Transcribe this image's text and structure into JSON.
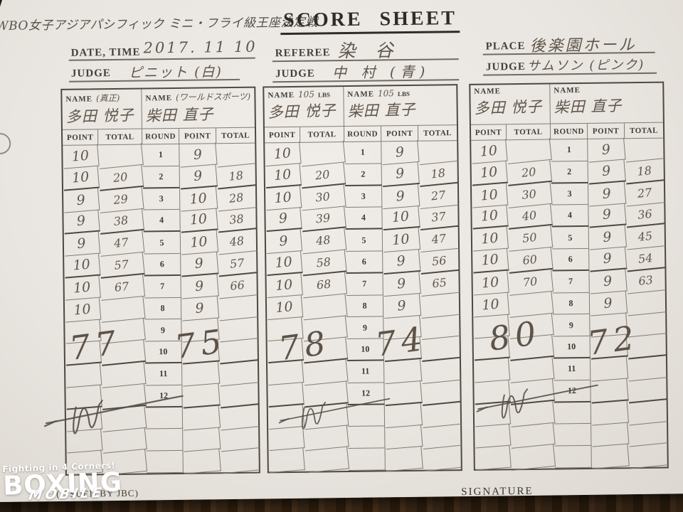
{
  "header": {
    "handwritten_title": "WBO女子アジアパシフィック ミニ・フライ級王座決定戦",
    "title": "SCORE SHEET",
    "date_time": {
      "label": "DATE, TIME",
      "value": "2017. 11 10"
    },
    "referee": {
      "label": "REFEREE",
      "value": "染 谷"
    },
    "place": {
      "label": "PLACE",
      "value": "後楽園ホール"
    },
    "judges": [
      {
        "label": "JUDGE",
        "value": "ピニット (白)"
      },
      {
        "label": "JUDGE",
        "value": "中 村 (青)"
      },
      {
        "label": "JUDGE",
        "value": "サムソン (ピンク)"
      }
    ]
  },
  "tables": [
    {
      "name_a": {
        "label": "NAME",
        "note": "(真正)",
        "unit": "",
        "value": "多田 悦子"
      },
      "name_b": {
        "label": "NAME",
        "note": "(ワールドスポーツ)",
        "unit": "",
        "value": "柴田 直子"
      },
      "columns": [
        "POINT",
        "TOTAL",
        "ROUND",
        "POINT",
        "TOTAL"
      ],
      "rounds": [
        {
          "no": "1",
          "ap": "10",
          "at": "",
          "bp": "9",
          "bt": ""
        },
        {
          "no": "2",
          "ap": "10",
          "at": "20",
          "bp": "9",
          "bt": "18"
        },
        {
          "no": "3",
          "ap": "9",
          "at": "29",
          "bp": "10",
          "bt": "28"
        },
        {
          "no": "4",
          "ap": "9",
          "at": "38",
          "bp": "10",
          "bt": "38"
        },
        {
          "no": "5",
          "ap": "9",
          "at": "47",
          "bp": "10",
          "bt": "48"
        },
        {
          "no": "6",
          "ap": "10",
          "at": "57",
          "bp": "9",
          "bt": "57"
        },
        {
          "no": "7",
          "ap": "10",
          "at": "67",
          "bp": "9",
          "bt": "66"
        },
        {
          "no": "8",
          "ap": "10",
          "at": "",
          "bp": "9",
          "bt": ""
        },
        {
          "no": "9",
          "ap": "",
          "at": "",
          "bp": "",
          "bt": ""
        },
        {
          "no": "10",
          "ap": "",
          "at": "",
          "bp": "",
          "bt": ""
        },
        {
          "no": "11",
          "ap": "",
          "at": "",
          "bp": "",
          "bt": ""
        },
        {
          "no": "12",
          "ap": "",
          "at": "",
          "bp": "",
          "bt": ""
        },
        {
          "no": "",
          "ap": "",
          "at": "",
          "bp": "",
          "bt": ""
        },
        {
          "no": "",
          "ap": "",
          "at": "",
          "bp": "",
          "bt": ""
        },
        {
          "no": "",
          "ap": "",
          "at": "",
          "bp": "",
          "bt": ""
        }
      ],
      "final_a": "77",
      "final_b": "75"
    },
    {
      "name_a": {
        "label": "NAME",
        "note": "105",
        "unit": "LBS",
        "value": "多田 悦子"
      },
      "name_b": {
        "label": "NAME",
        "note": "105",
        "unit": "LBS",
        "value": "柴田 直子"
      },
      "columns": [
        "POINT",
        "TOTAL",
        "ROUND",
        "POINT",
        "TOTAL"
      ],
      "rounds": [
        {
          "no": "1",
          "ap": "10",
          "at": "",
          "bp": "9",
          "bt": ""
        },
        {
          "no": "2",
          "ap": "10",
          "at": "20",
          "bp": "9",
          "bt": "18"
        },
        {
          "no": "3",
          "ap": "10",
          "at": "30",
          "bp": "9",
          "bt": "27"
        },
        {
          "no": "4",
          "ap": "9",
          "at": "39",
          "bp": "10",
          "bt": "37"
        },
        {
          "no": "5",
          "ap": "9",
          "at": "48",
          "bp": "10",
          "bt": "47"
        },
        {
          "no": "6",
          "ap": "10",
          "at": "58",
          "bp": "9",
          "bt": "56"
        },
        {
          "no": "7",
          "ap": "10",
          "at": "68",
          "bp": "9",
          "bt": "65"
        },
        {
          "no": "8",
          "ap": "10",
          "at": "",
          "bp": "9",
          "bt": ""
        },
        {
          "no": "9",
          "ap": "",
          "at": "",
          "bp": "",
          "bt": ""
        },
        {
          "no": "10",
          "ap": "",
          "at": "",
          "bp": "",
          "bt": ""
        },
        {
          "no": "11",
          "ap": "",
          "at": "",
          "bp": "",
          "bt": ""
        },
        {
          "no": "12",
          "ap": "",
          "at": "",
          "bp": "",
          "bt": ""
        },
        {
          "no": "",
          "ap": "",
          "at": "",
          "bp": "",
          "bt": ""
        },
        {
          "no": "",
          "ap": "",
          "at": "",
          "bp": "",
          "bt": ""
        },
        {
          "no": "",
          "ap": "",
          "at": "",
          "bp": "",
          "bt": ""
        }
      ],
      "final_a": "78",
      "final_b": "74"
    },
    {
      "name_a": {
        "label": "NAME",
        "note": "",
        "unit": "",
        "value": "多田 悦子"
      },
      "name_b": {
        "label": "NAME",
        "note": "",
        "unit": "",
        "value": "柴田 直子"
      },
      "columns": [
        "POINT",
        "TOTAL",
        "ROUND",
        "POINT",
        "TOTAL"
      ],
      "rounds": [
        {
          "no": "1",
          "ap": "10",
          "at": "",
          "bp": "9",
          "bt": ""
        },
        {
          "no": "2",
          "ap": "10",
          "at": "20",
          "bp": "9",
          "bt": "18"
        },
        {
          "no": "3",
          "ap": "10",
          "at": "30",
          "bp": "9",
          "bt": "27"
        },
        {
          "no": "4",
          "ap": "10",
          "at": "40",
          "bp": "9",
          "bt": "36"
        },
        {
          "no": "5",
          "ap": "10",
          "at": "50",
          "bp": "9",
          "bt": "45"
        },
        {
          "no": "6",
          "ap": "10",
          "at": "60",
          "bp": "9",
          "bt": "54"
        },
        {
          "no": "7",
          "ap": "10",
          "at": "70",
          "bp": "9",
          "bt": "63"
        },
        {
          "no": "8",
          "ap": "10",
          "at": "",
          "bp": "9",
          "bt": ""
        },
        {
          "no": "9",
          "ap": "",
          "at": "",
          "bp": "",
          "bt": ""
        },
        {
          "no": "10",
          "ap": "",
          "at": "",
          "bp": "",
          "bt": ""
        },
        {
          "no": "11",
          "ap": "",
          "at": "",
          "bp": "",
          "bt": ""
        },
        {
          "no": "12",
          "ap": "",
          "at": "",
          "bp": "",
          "bt": ""
        },
        {
          "no": "",
          "ap": "",
          "at": "",
          "bp": "",
          "bt": ""
        },
        {
          "no": "",
          "ap": "",
          "at": "",
          "bp": "",
          "bt": ""
        },
        {
          "no": "",
          "ap": "",
          "at": "",
          "bp": "",
          "bt": ""
        }
      ],
      "final_a": "80",
      "final_b": "72"
    }
  ],
  "footer": {
    "issued_by": "(ISSUED BY JBC)",
    "signature_label": "SIGNATURE"
  },
  "watermark": {
    "tagline": "Fighting in 4 Corners!",
    "brand": "BOXING",
    "sub": "MOBILE"
  },
  "colors": {
    "paper": "#e9e5e0",
    "wood": "#2e2013",
    "pencil": "#60564a",
    "ink": "#2f2b26"
  }
}
